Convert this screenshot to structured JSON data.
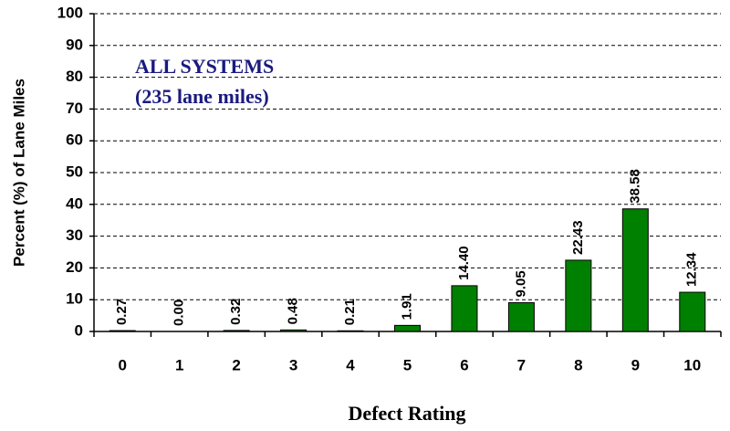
{
  "chart_data": {
    "type": "bar",
    "annotations": [
      "ALL SYSTEMS",
      "(235 lane miles)"
    ],
    "x_label": "Defect Rating",
    "y_label": "Percent (%) of Lane Miles",
    "categories": [
      "0",
      "1",
      "2",
      "3",
      "4",
      "5",
      "6",
      "7",
      "8",
      "9",
      "10"
    ],
    "values": [
      0.27,
      0.0,
      0.32,
      0.48,
      0.21,
      1.91,
      14.4,
      9.05,
      22.43,
      38.58,
      12.34
    ],
    "value_labels": [
      "0.27",
      "0.00",
      "0.32",
      "0.48",
      "0.21",
      "1.91",
      "14.40",
      "9.05",
      "22.43",
      "38.58",
      "12.34"
    ],
    "color": "#008000",
    "ylim": [
      0,
      100
    ],
    "yticks": [
      0,
      10,
      20,
      30,
      40,
      50,
      60,
      70,
      80,
      90,
      100
    ],
    "grid": true
  }
}
